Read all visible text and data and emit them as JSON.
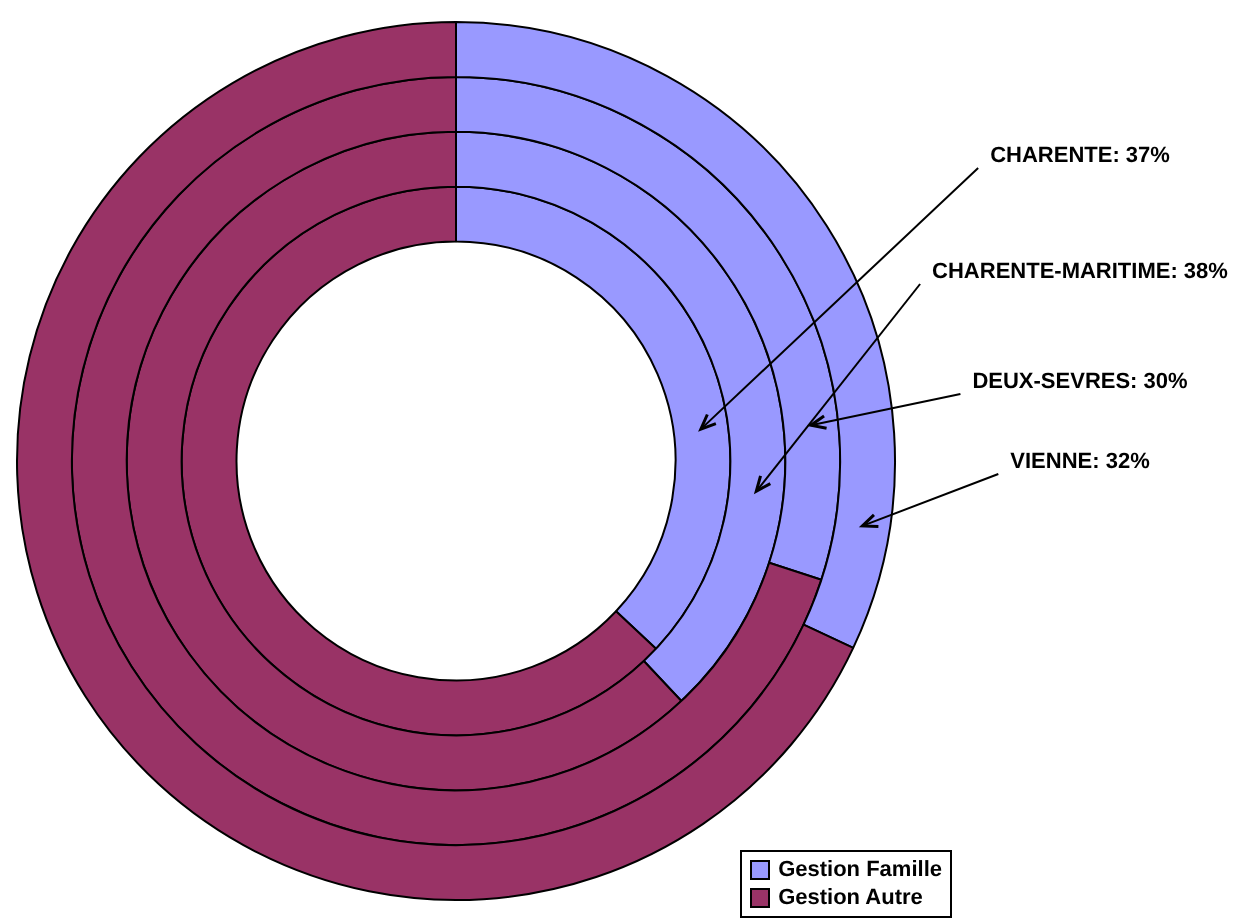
{
  "chart_data": {
    "type": "donut",
    "categories": [
      "Gestion Famille",
      "Gestion Autre"
    ],
    "colors": [
      "#9999ff",
      "#993366"
    ],
    "legend": "bottom right",
    "series": [
      {
        "values": [
          37,
          63
        ],
        "value_labels": [
          "CHARENTE: 37%",
          null
        ]
      },
      {
        "values": [
          38,
          62
        ],
        "value_labels": [
          "CHARENTE-MARITIME: 38%",
          null
        ]
      },
      {
        "values": [
          30,
          70
        ],
        "value_labels": [
          "DEUX-SEVRES: 30%",
          null
        ]
      },
      {
        "values": [
          32,
          68
        ],
        "value_labels": [
          "VIENNE: 32%",
          null
        ]
      }
    ]
  }
}
